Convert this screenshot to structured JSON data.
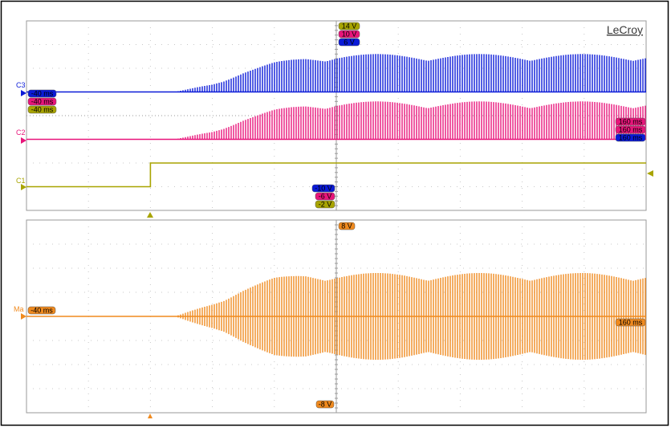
{
  "brand": "LeCroy",
  "colors": {
    "c3": "#0a1ad8",
    "c2": "#e8147a",
    "c1": "#a8a400",
    "ma": "#f08a1e",
    "grid": "#c8c8c8",
    "frame": "#000000"
  },
  "chart_data": [
    {
      "type": "line",
      "panel": "upper",
      "grid": true,
      "divisions": {
        "x": 10,
        "y": 8
      },
      "scale_labels": {
        "top": [
          "14 V",
          "10 V",
          "6 V"
        ],
        "bottom": [
          "-10 V",
          "-6 V",
          "-2 V"
        ],
        "left": [
          "-40 ms",
          "-40 ms",
          "-40 ms"
        ],
        "right": [
          "160 ms",
          "160 ms",
          "160 ms"
        ]
      },
      "series": [
        {
          "name": "C3",
          "color_key": "c3",
          "x_ms": [
            -40,
            8,
            20,
            30,
            40,
            50,
            60,
            160
          ],
          "baseline_div": 1.0,
          "envelope_div": [
            0,
            0,
            0.35,
            0.85,
            1.25,
            1.5,
            1.6,
            1.6
          ],
          "mode": "above"
        },
        {
          "name": "C2",
          "color_key": "c2",
          "x_ms": [
            -40,
            8,
            20,
            30,
            40,
            50,
            60,
            160
          ],
          "baseline_div": -1.0,
          "envelope_div": [
            0,
            0,
            0.35,
            0.85,
            1.25,
            1.5,
            1.6,
            1.6
          ],
          "mode": "above"
        },
        {
          "name": "C1",
          "color_key": "c1",
          "steps_ms": [
            -40,
            0,
            160
          ],
          "levels_div": [
            -3.0,
            -2.0
          ]
        }
      ]
    },
    {
      "type": "line",
      "panel": "lower",
      "grid": true,
      "divisions": {
        "x": 10,
        "y": 8
      },
      "scale_labels": {
        "top": [
          "8 V"
        ],
        "bottom": [
          "-8 V"
        ],
        "left": [
          "-40 ms"
        ],
        "right": [
          "160 ms"
        ]
      },
      "series": [
        {
          "name": "Ma",
          "color_key": "ma",
          "x_ms": [
            -40,
            8,
            20,
            30,
            40,
            50,
            60,
            160
          ],
          "baseline_div": 0,
          "envelope_div": [
            0,
            0,
            0.55,
            1.15,
            1.6,
            1.8,
            1.8,
            1.8
          ],
          "mode": "symmetric"
        }
      ]
    }
  ]
}
